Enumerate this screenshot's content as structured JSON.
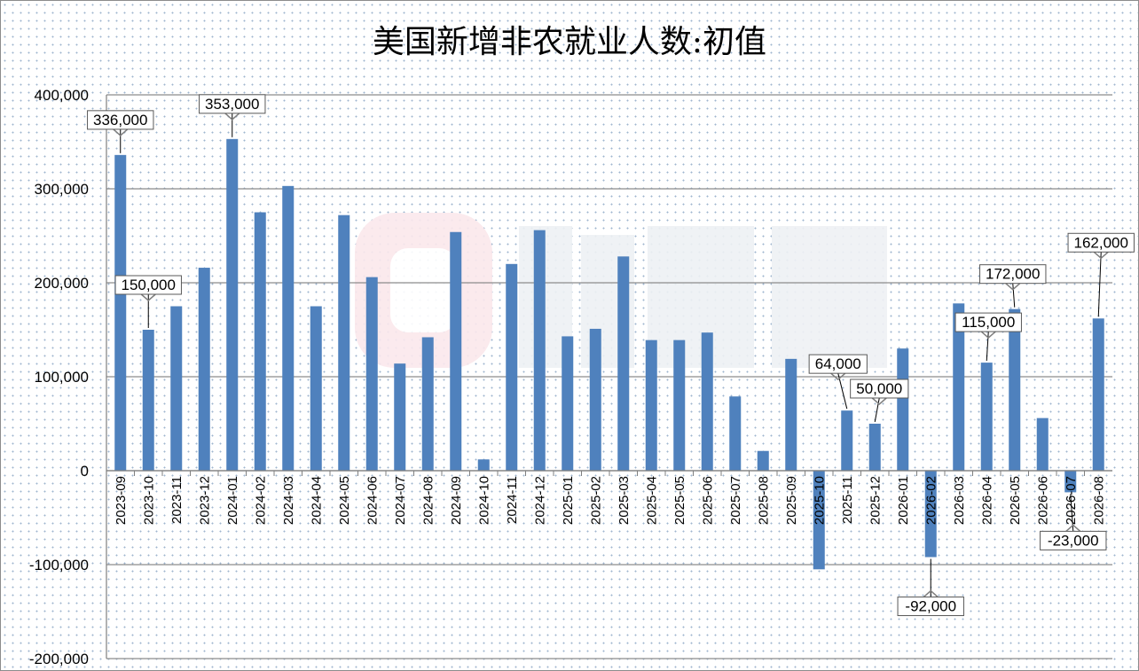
{
  "chart_data": {
    "type": "bar",
    "title": "美国新增非农就业人数:初值",
    "xlabel": "",
    "ylabel": "",
    "ylim": [
      -200000,
      400000
    ],
    "yticks": [
      400000,
      300000,
      200000,
      100000,
      0,
      -100000,
      -200000
    ],
    "ytick_labels": [
      "400,000",
      "300,000",
      "200,000",
      "100,000",
      "0",
      "-100,000",
      "-200,000"
    ],
    "grid": "horizontal",
    "legend": "none",
    "bar_color": "#4f81bd",
    "categories": [
      "2023-09",
      "2023-10",
      "2023-11",
      "2023-12",
      "2024-01",
      "2024-02",
      "2024-03",
      "2024-04",
      "2024-05",
      "2024-06",
      "2024-07",
      "2024-08",
      "2024-09",
      "2024-10",
      "2024-11",
      "2024-12",
      "2025-01",
      "2025-02",
      "2025-03",
      "2025-04",
      "2025-05",
      "2025-06",
      "2025-07",
      "2025-08",
      "2025-09",
      "2025-10",
      "2025-11",
      "2025-12",
      "2026-01",
      "2026-02",
      "2026-03",
      "2026-04",
      "2026-05",
      "2026-06",
      "2026-07",
      "2026-08"
    ],
    "values": [
      336000,
      150000,
      175000,
      216000,
      353000,
      275000,
      303000,
      175000,
      272000,
      206000,
      114000,
      142000,
      254000,
      12000,
      220000,
      256000,
      143000,
      151000,
      228000,
      139000,
      139000,
      147000,
      79000,
      21000,
      119000,
      -105000,
      64000,
      50000,
      130000,
      -92000,
      178000,
      115000,
      172000,
      56000,
      -23000,
      162000
    ],
    "data_labels": [
      {
        "category": "2023-09",
        "text": "336,000"
      },
      {
        "category": "2023-10",
        "text": "150,000"
      },
      {
        "category": "2024-01",
        "text": "353,000"
      },
      {
        "category": "2025-11",
        "text": "64,000"
      },
      {
        "category": "2025-12",
        "text": "50,000"
      },
      {
        "category": "2026-02",
        "text": "-92,000"
      },
      {
        "category": "2026-04",
        "text": "115,000"
      },
      {
        "category": "2026-05",
        "text": "172,000"
      },
      {
        "category": "2026-07",
        "text": "-23,000"
      },
      {
        "category": "2026-08",
        "text": "162,000"
      }
    ]
  }
}
